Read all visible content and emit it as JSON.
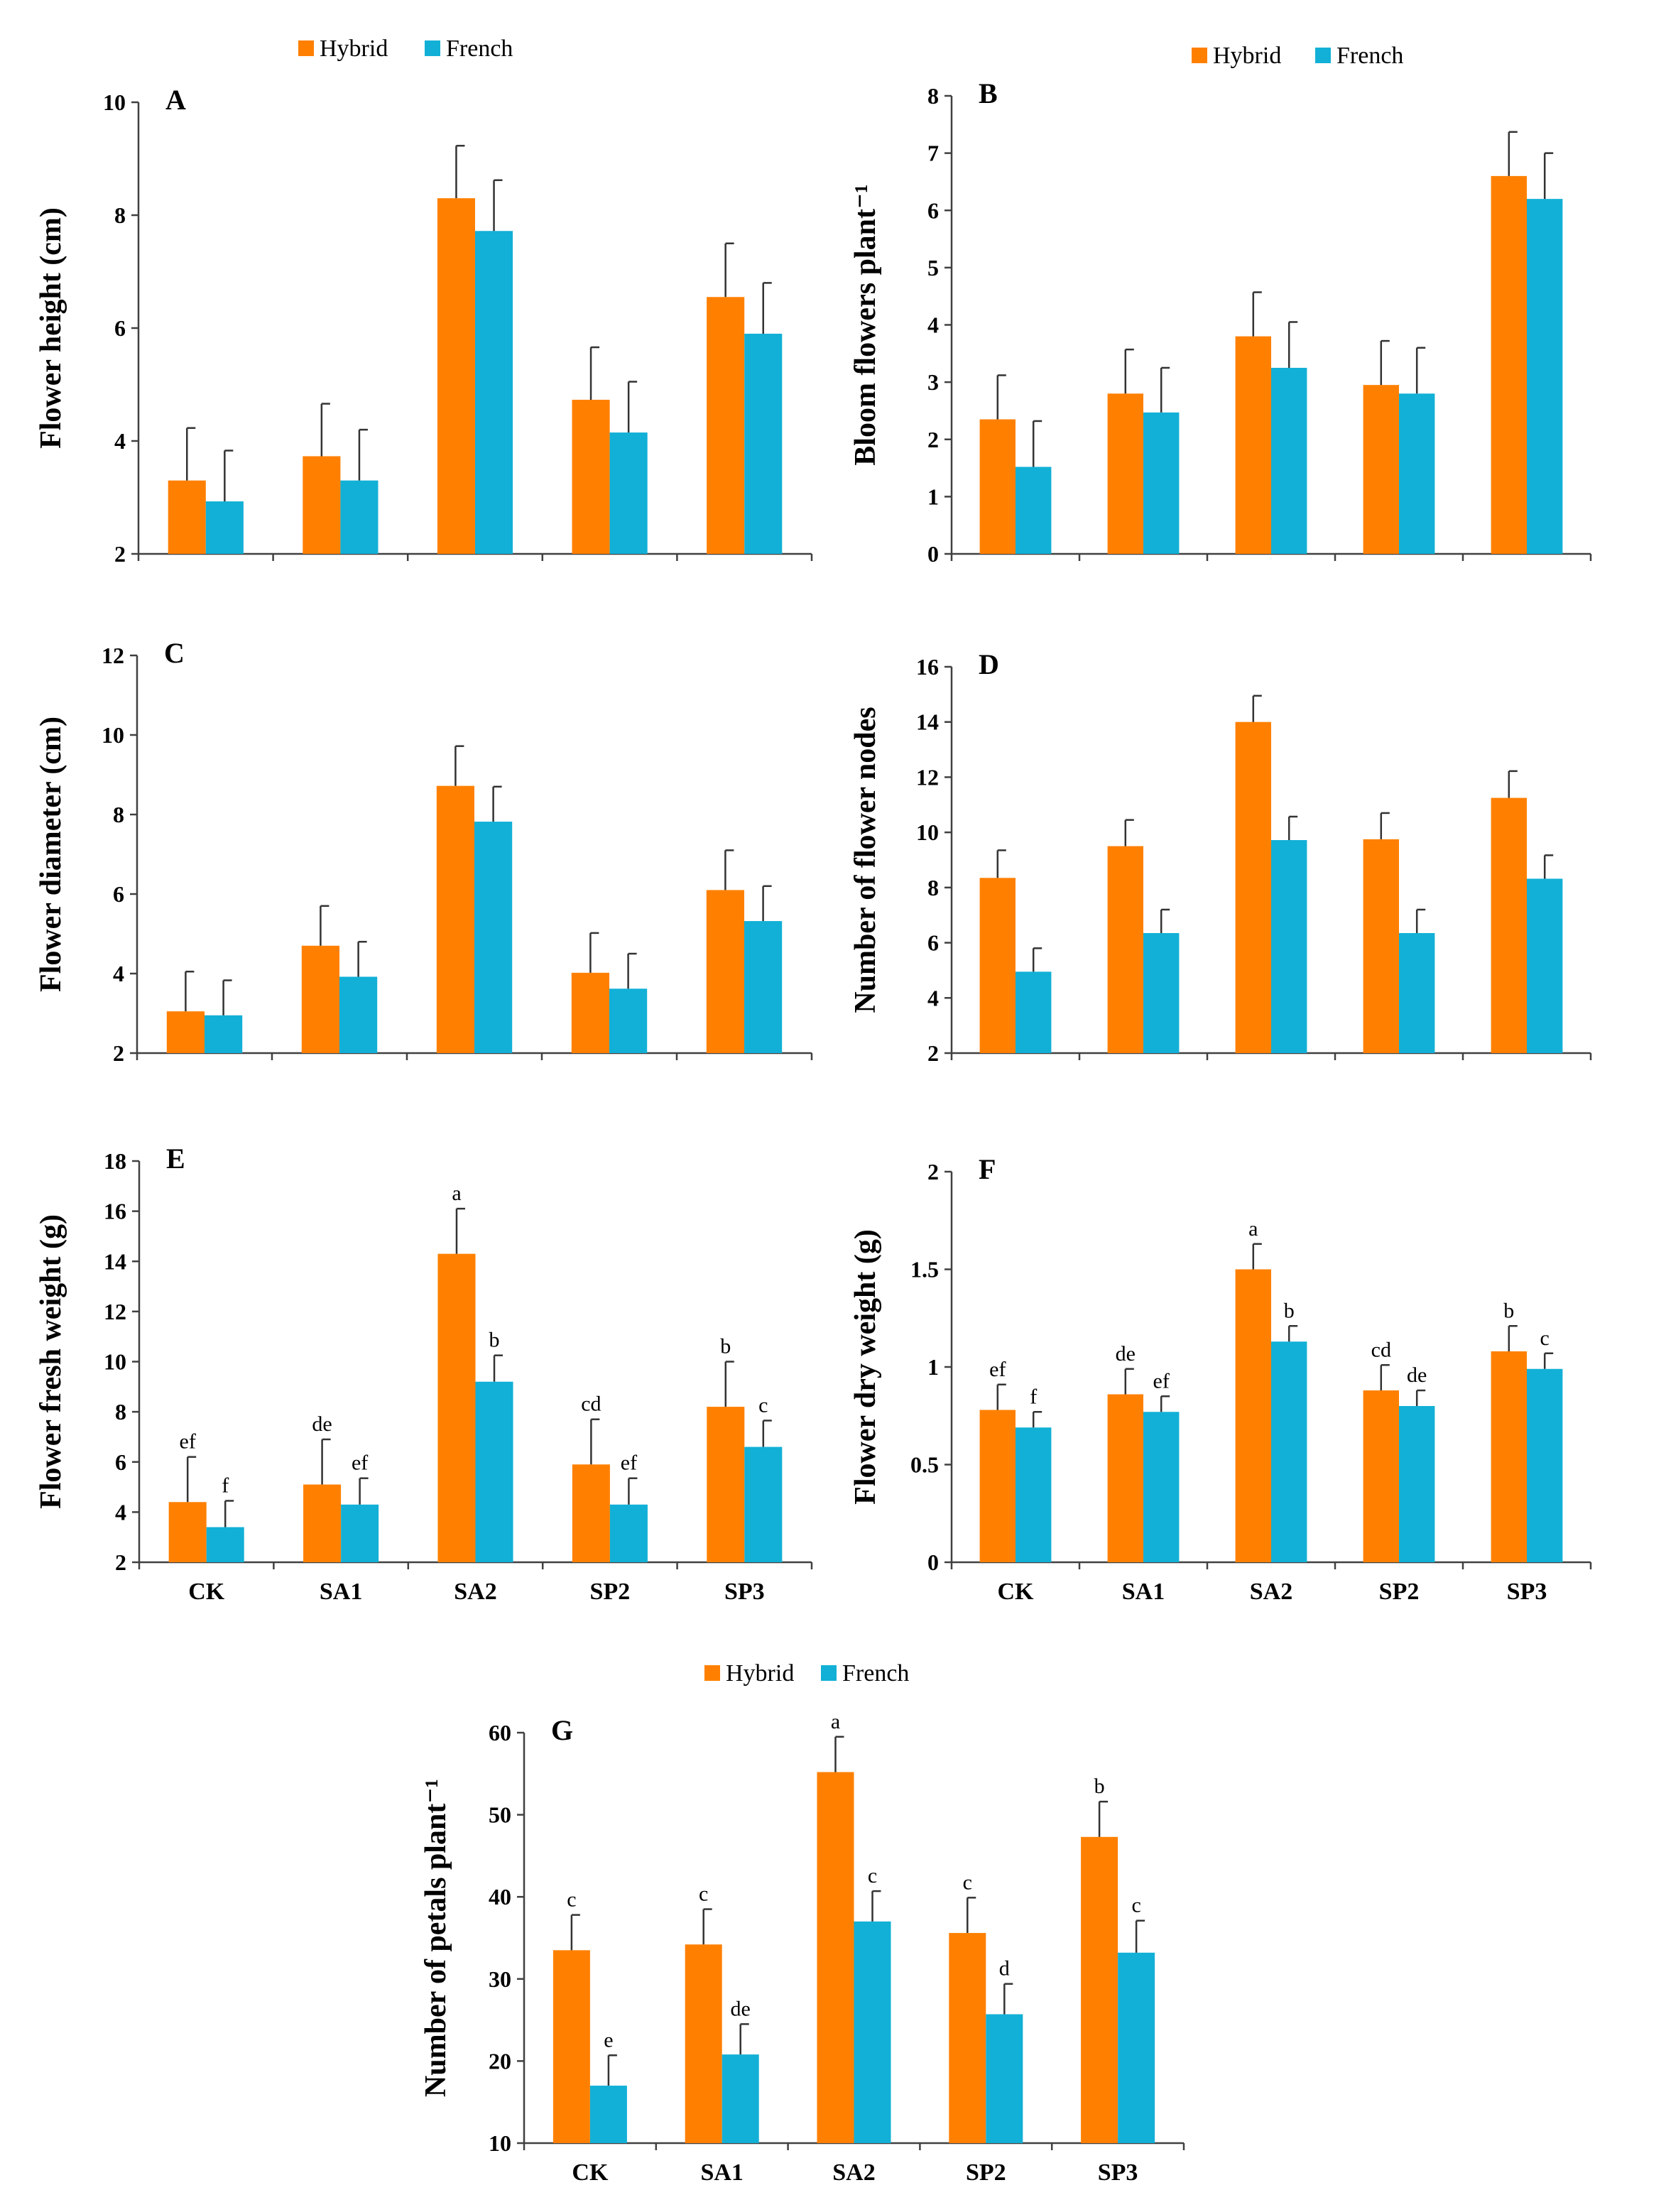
{
  "colors": {
    "hybrid": "#FF8000",
    "french": "#12B0D6",
    "axis": "#404040",
    "error": "#333333",
    "text": "#000000"
  },
  "legends": [
    {
      "hybrid_label": "Hybrid",
      "french_label": "French"
    },
    {
      "hybrid_label": "Hybrid",
      "french_label": "French"
    },
    {
      "hybrid_label": "Hybrid",
      "french_label": "French"
    }
  ],
  "chart_data": [
    {
      "panel": "A",
      "type": "bar",
      "ylabel": "Flower height (cm)",
      "categories": [
        "CK",
        "SA1",
        "SA2",
        "SP2",
        "SP3"
      ],
      "show_categories": false,
      "ylim": [
        2,
        10
      ],
      "yticks": [
        2,
        4,
        6,
        8,
        10
      ],
      "series": [
        {
          "name": "Hybrid",
          "values": [
            3.3,
            3.73,
            8.3,
            4.73,
            6.55
          ],
          "errors": [
            0.93,
            0.93,
            0.93,
            0.93,
            0.95
          ],
          "labels": null
        },
        {
          "name": "French",
          "values": [
            2.93,
            3.3,
            7.72,
            4.15,
            5.9
          ],
          "errors": [
            0.9,
            0.9,
            0.9,
            0.9,
            0.9
          ],
          "labels": null
        }
      ]
    },
    {
      "panel": "B",
      "type": "bar",
      "ylabel": "Bloom flowers plant⁻¹",
      "categories": [
        "CK",
        "SA1",
        "SA2",
        "SP2",
        "SP3"
      ],
      "show_categories": false,
      "ylim": [
        0,
        8
      ],
      "yticks": [
        0,
        1,
        2,
        3,
        4,
        5,
        6,
        7,
        8
      ],
      "series": [
        {
          "name": "Hybrid",
          "values": [
            2.35,
            2.8,
            3.8,
            2.95,
            6.6
          ],
          "errors": [
            0.77,
            0.77,
            0.77,
            0.77,
            0.77
          ],
          "labels": null
        },
        {
          "name": "French",
          "values": [
            1.52,
            2.47,
            3.25,
            2.8,
            6.2
          ],
          "errors": [
            0.8,
            0.78,
            0.8,
            0.8,
            0.8
          ],
          "labels": null
        }
      ]
    },
    {
      "panel": "C",
      "type": "bar",
      "ylabel": "Flower diameter (cm)",
      "categories": [
        "CK",
        "SA1",
        "SA2",
        "SP2",
        "SP3"
      ],
      "show_categories": false,
      "ylim": [
        2,
        12
      ],
      "yticks": [
        2,
        4,
        6,
        8,
        10,
        12
      ],
      "series": [
        {
          "name": "Hybrid",
          "values": [
            3.05,
            4.7,
            8.72,
            4.02,
            6.1
          ],
          "errors": [
            1.0,
            1.0,
            1.0,
            1.0,
            1.0
          ],
          "labels": null
        },
        {
          "name": "French",
          "values": [
            2.95,
            3.92,
            7.82,
            3.62,
            5.32
          ],
          "errors": [
            0.88,
            0.88,
            0.88,
            0.88,
            0.88
          ],
          "labels": null
        }
      ]
    },
    {
      "panel": "D",
      "type": "bar",
      "ylabel": "Number of flower nodes",
      "categories": [
        "CK",
        "SA1",
        "SA2",
        "SP2",
        "SP3"
      ],
      "show_categories": false,
      "ylim": [
        2,
        16
      ],
      "yticks": [
        2,
        4,
        6,
        8,
        10,
        12,
        14,
        16
      ],
      "series": [
        {
          "name": "Hybrid",
          "values": [
            8.35,
            9.5,
            14.0,
            9.75,
            11.25
          ],
          "errors": [
            1.0,
            0.95,
            0.95,
            0.95,
            0.97
          ],
          "labels": null
        },
        {
          "name": "French",
          "values": [
            4.95,
            6.35,
            9.72,
            6.35,
            8.32
          ],
          "errors": [
            0.85,
            0.85,
            0.85,
            0.85,
            0.85
          ],
          "labels": null
        }
      ]
    },
    {
      "panel": "E",
      "type": "bar",
      "ylabel": "Flower fresh weight (g)",
      "categories": [
        "CK",
        "SA1",
        "SA2",
        "SP2",
        "SP3"
      ],
      "show_categories": true,
      "ylim": [
        2,
        18
      ],
      "yticks": [
        2,
        4,
        6,
        8,
        10,
        12,
        14,
        16,
        18
      ],
      "series": [
        {
          "name": "Hybrid",
          "values": [
            4.4,
            5.1,
            14.3,
            5.9,
            8.2
          ],
          "errors": [
            1.8,
            1.8,
            1.8,
            1.8,
            1.8
          ],
          "labels": [
            "ef",
            "de",
            "a",
            "cd",
            "b"
          ]
        },
        {
          "name": "French",
          "values": [
            3.4,
            4.3,
            9.2,
            4.3,
            6.6
          ],
          "errors": [
            1.05,
            1.05,
            1.05,
            1.05,
            1.05
          ],
          "labels": [
            "f",
            "ef",
            "b",
            "ef",
            "c"
          ]
        }
      ]
    },
    {
      "panel": "F",
      "type": "bar",
      "ylabel": "Flower dry weight (g)",
      "categories": [
        "CK",
        "SA1",
        "SA2",
        "SP2",
        "SP3"
      ],
      "show_categories": true,
      "ylim": [
        0,
        2
      ],
      "yticks": [
        0,
        0.5,
        1,
        1.5,
        2
      ],
      "series": [
        {
          "name": "Hybrid",
          "values": [
            0.78,
            0.86,
            1.5,
            0.88,
            1.08
          ],
          "errors": [
            0.13,
            0.13,
            0.13,
            0.13,
            0.13
          ],
          "labels": [
            "ef",
            "de",
            "a",
            "cd",
            "b"
          ]
        },
        {
          "name": "French",
          "values": [
            0.69,
            0.77,
            1.13,
            0.8,
            0.99
          ],
          "errors": [
            0.08,
            0.08,
            0.08,
            0.08,
            0.08
          ],
          "labels": [
            "f",
            "ef",
            "b",
            "de",
            "c"
          ]
        }
      ]
    },
    {
      "panel": "G",
      "type": "bar",
      "ylabel": "Number of petals plant⁻¹",
      "categories": [
        "CK",
        "SA1",
        "SA2",
        "SP2",
        "SP3"
      ],
      "show_categories": true,
      "ylim": [
        10,
        60
      ],
      "yticks": [
        10,
        20,
        30,
        40,
        50,
        60
      ],
      "series": [
        {
          "name": "Hybrid",
          "values": [
            33.5,
            34.2,
            55.2,
            35.6,
            47.3
          ],
          "errors": [
            4.3,
            4.3,
            4.3,
            4.3,
            4.3
          ],
          "labels": [
            "c",
            "c",
            "a",
            "c",
            "b"
          ]
        },
        {
          "name": "French",
          "values": [
            17.0,
            20.8,
            37.0,
            25.7,
            33.2
          ],
          "errors": [
            3.7,
            3.7,
            3.7,
            3.7,
            3.9
          ],
          "labels": [
            "e",
            "de",
            "c",
            "d",
            "c"
          ]
        }
      ]
    }
  ]
}
